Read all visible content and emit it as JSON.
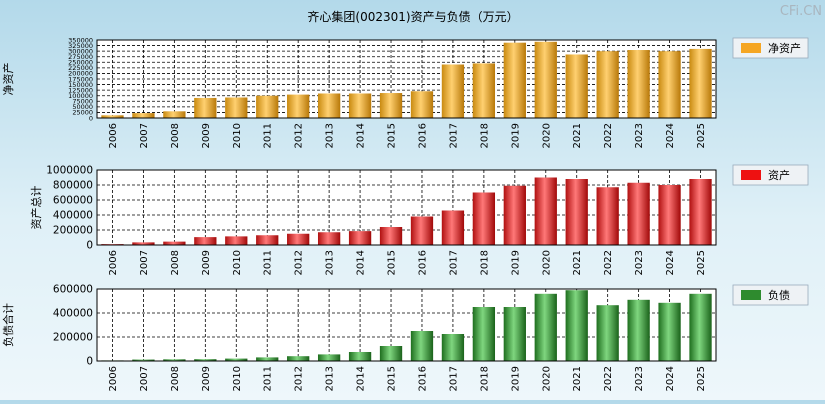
{
  "title": "齐心集团(002301)资产与负债（万元）",
  "watermark": "CFi.CN",
  "years": [
    "2006",
    "2007",
    "2008",
    "2009",
    "2010",
    "2011",
    "2012",
    "2013",
    "2014",
    "2015",
    "2016",
    "2017",
    "2018",
    "2019",
    "2020",
    "2021",
    "2022",
    "2023",
    "2024",
    "2025"
  ],
  "chart_data": [
    {
      "type": "bar",
      "ylabel": "净资产",
      "legend": "净资产",
      "color": "#f5a623",
      "categories": [
        "2006",
        "2007",
        "2008",
        "2009",
        "2010",
        "2011",
        "2012",
        "2013",
        "2014",
        "2015",
        "2016",
        "2017",
        "2018",
        "2019",
        "2020",
        "2021",
        "2022",
        "2023",
        "2024",
        "2025"
      ],
      "values": [
        12000,
        22000,
        30000,
        90000,
        92000,
        100000,
        105000,
        110000,
        110000,
        112000,
        120000,
        240000,
        245000,
        338000,
        342000,
        285000,
        300000,
        305000,
        300000,
        310000
      ],
      "ylim": [
        0,
        350000
      ],
      "ticks": [
        0,
        25000,
        50000,
        75000,
        100000,
        125000,
        150000,
        175000,
        200000,
        225000,
        250000,
        275000,
        300000,
        325000,
        350000
      ]
    },
    {
      "type": "bar",
      "ylabel": "资产总计",
      "legend": "资产",
      "color": "#ee1111",
      "categories": [
        "2006",
        "2007",
        "2008",
        "2009",
        "2010",
        "2011",
        "2012",
        "2013",
        "2014",
        "2015",
        "2016",
        "2017",
        "2018",
        "2019",
        "2020",
        "2021",
        "2022",
        "2023",
        "2024",
        "2025"
      ],
      "values": [
        12000,
        35000,
        45000,
        105000,
        115000,
        130000,
        150000,
        170000,
        185000,
        240000,
        380000,
        460000,
        700000,
        790000,
        900000,
        880000,
        770000,
        830000,
        800000,
        880000
      ],
      "ylim": [
        0,
        1000000
      ],
      "ticks": [
        0,
        200000,
        400000,
        600000,
        800000,
        1000000
      ]
    },
    {
      "type": "bar",
      "ylabel": "负债合计",
      "legend": "负债",
      "color": "#2e8b2e",
      "categories": [
        "2006",
        "2007",
        "2008",
        "2009",
        "2010",
        "2011",
        "2012",
        "2013",
        "2014",
        "2015",
        "2016",
        "2017",
        "2018",
        "2019",
        "2020",
        "2021",
        "2022",
        "2023",
        "2024",
        "2025"
      ],
      "values": [
        5000,
        12000,
        14000,
        15000,
        20000,
        30000,
        40000,
        55000,
        75000,
        125000,
        250000,
        225000,
        450000,
        450000,
        560000,
        590000,
        465000,
        510000,
        485000,
        560000
      ],
      "ylim": [
        0,
        600000
      ],
      "ticks": [
        0,
        200000,
        400000,
        600000
      ]
    }
  ]
}
